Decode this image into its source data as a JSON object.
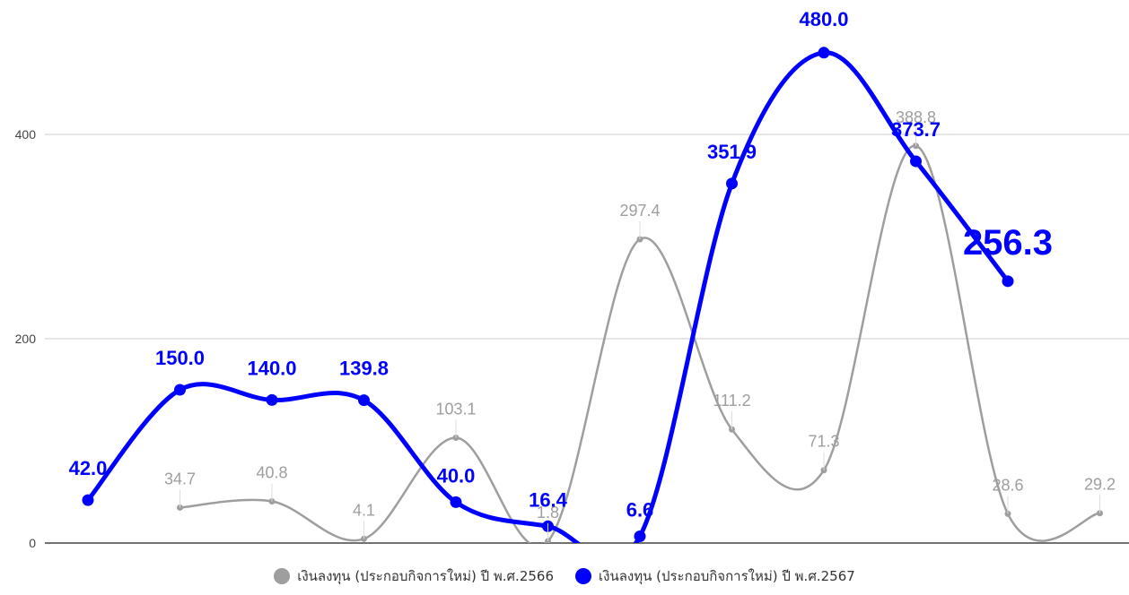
{
  "chart_data": {
    "type": "line",
    "smooth": true,
    "ylim": [
      0,
      500
    ],
    "y_ticks": [
      0,
      200,
      400
    ],
    "grid": true,
    "legend_position": "bottom",
    "num_categories": 12,
    "series": [
      {
        "name": "เงินลงทุน (ประกอบกิจการใหม่) ปี พ.ศ.2566",
        "color": "#9e9e9e",
        "values": [
          null,
          34.7,
          40.8,
          4.1,
          103.1,
          1.8,
          297.4,
          111.2,
          71.3,
          388.8,
          28.6,
          29.2
        ],
        "labels": [
          "",
          "34.7",
          "40.8",
          "4.1",
          "103.1",
          "1.8",
          "297.4",
          "111.2",
          "71.3",
          "388.8",
          "28.6",
          "29.2"
        ]
      },
      {
        "name": "เงินลงทุน (ประกอบกิจการใหม่) ปี พ.ศ.2567",
        "color": "#0000ff",
        "values": [
          42.0,
          150.0,
          140.0,
          139.8,
          40.0,
          16.4,
          6.6,
          351.9,
          480.0,
          373.7,
          256.3,
          null
        ],
        "labels": [
          "42.0",
          "150.0",
          "140.0",
          "139.8",
          "40.0",
          "16.4",
          "6.6",
          "351.9",
          "480.0",
          "373.7",
          "256.3",
          ""
        ]
      }
    ]
  }
}
